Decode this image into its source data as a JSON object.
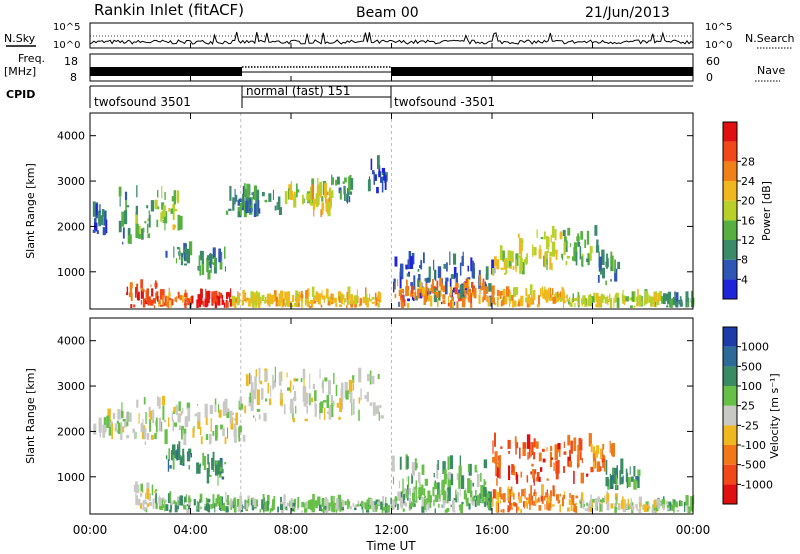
{
  "header": {
    "station": "Rankin Inlet (fitACF)",
    "beam": "Beam 00",
    "date": "21/Jun/2013"
  },
  "noise_panel": {
    "left_label": "N.Sky",
    "right_label": "N.Search",
    "ticks_left": [
      "10^5",
      "10^0"
    ],
    "ticks_right": [
      "10^5",
      "10^0"
    ]
  },
  "freq_panel": {
    "left_label_1": "Freq.",
    "left_label_2": "[MHz]",
    "ticks_left": [
      "18",
      "8"
    ],
    "ticks_right": [
      "60",
      "0"
    ],
    "right_label": "Nave"
  },
  "cpid": {
    "label": "CPID",
    "segments": [
      {
        "name": "twofsound 3501",
        "start_hour": 0,
        "end_hour": 6
      },
      {
        "name": "normal (fast) 151",
        "start_hour": 6,
        "end_hour": 12
      },
      {
        "name": "twofsound -3501",
        "start_hour": 12,
        "end_hour": 24
      }
    ]
  },
  "time_axis": {
    "label": "Time UT",
    "ticks": [
      "00:00",
      "04:00",
      "08:00",
      "12:00",
      "16:00",
      "20:00",
      "00:00"
    ]
  },
  "chart_data": [
    {
      "type": "heatmap",
      "title": "",
      "xlabel": "Time UT",
      "ylabel": "Slant Range [km]",
      "xlim_hours": [
        0,
        24
      ],
      "ylim": [
        180,
        4500
      ],
      "yticks": [
        1000,
        2000,
        3000,
        4000
      ],
      "colorbar": {
        "label": "Power [dB]",
        "ticks": [
          "4",
          "8",
          "12",
          "16",
          "20",
          "24",
          "28"
        ],
        "colors": [
          "#1f24d8",
          "#2f56b4",
          "#3b8a6a",
          "#55b040",
          "#b8d028",
          "#f0b81c",
          "#f08018",
          "#f04818",
          "#e01010"
        ]
      },
      "blobs": [
        {
          "t": [
            0.1,
            0.9
          ],
          "r": [
            1800,
            2300
          ],
          "level": 1
        },
        {
          "t": [
            1.0,
            1.6
          ],
          "r": [
            1600,
            2700
          ],
          "level": 2
        },
        {
          "t": [
            1.8,
            3.0
          ],
          "r": [
            1700,
            2700
          ],
          "level": 3
        },
        {
          "t": [
            2.8,
            3.6
          ],
          "r": [
            1900,
            2600
          ],
          "level": 4
        },
        {
          "t": [
            3.0,
            4.0
          ],
          "r": [
            1100,
            1500
          ],
          "level": 2
        },
        {
          "t": [
            4.2,
            5.4
          ],
          "r": [
            800,
            1300
          ],
          "level": 2
        },
        {
          "t": [
            5.4,
            6.2
          ],
          "r": [
            2200,
            2600
          ],
          "level": 2
        },
        {
          "t": [
            6.0,
            7.6
          ],
          "r": [
            2200,
            2700
          ],
          "level": 2
        },
        {
          "t": [
            7.6,
            9.3
          ],
          "r": [
            2400,
            2800
          ],
          "level": 4
        },
        {
          "t": [
            8.8,
            9.6
          ],
          "r": [
            2200,
            2700
          ],
          "level": 5
        },
        {
          "t": [
            9.6,
            10.4
          ],
          "r": [
            2500,
            3000
          ],
          "level": 2
        },
        {
          "t": [
            11.0,
            11.8
          ],
          "r": [
            2700,
            3300
          ],
          "level": 1
        },
        {
          "t": [
            12.0,
            16.0
          ],
          "r": [
            200,
            1200
          ],
          "level": 1
        },
        {
          "t": [
            16.0,
            17.2
          ],
          "r": [
            900,
            1300
          ],
          "level": 4
        },
        {
          "t": [
            17.0,
            18.8
          ],
          "r": [
            1000,
            1800
          ],
          "level": 4
        },
        {
          "t": [
            18.8,
            20.2
          ],
          "r": [
            1100,
            1800
          ],
          "level": 3
        },
        {
          "t": [
            20.2,
            21.0
          ],
          "r": [
            700,
            1200
          ],
          "level": 2
        }
      ],
      "ground": [
        {
          "t": [
            1.4,
            2.7
          ],
          "r": [
            200,
            700
          ],
          "level": 7
        },
        {
          "t": [
            2.7,
            4.0
          ],
          "r": [
            200,
            450
          ],
          "level": 6
        },
        {
          "t": [
            4.0,
            5.6
          ],
          "r": [
            200,
            450
          ],
          "level": 8
        },
        {
          "t": [
            5.6,
            8.0
          ],
          "r": [
            200,
            400
          ],
          "level": 5
        },
        {
          "t": [
            8.0,
            11.5
          ],
          "r": [
            200,
            450
          ],
          "level": 5
        },
        {
          "t": [
            12.0,
            15.8
          ],
          "r": [
            200,
            700
          ],
          "level": 6
        },
        {
          "t": [
            15.8,
            19.0
          ],
          "r": [
            200,
            500
          ],
          "level": 5
        },
        {
          "t": [
            19.0,
            22.8
          ],
          "r": [
            200,
            400
          ],
          "level": 4
        },
        {
          "t": [
            22.8,
            24.0
          ],
          "r": [
            200,
            400
          ],
          "level": 2
        }
      ]
    },
    {
      "type": "heatmap",
      "title": "",
      "xlabel": "Time UT",
      "ylabel": "Slant Range [km]",
      "xlim_hours": [
        0,
        24
      ],
      "ylim": [
        180,
        4500
      ],
      "yticks": [
        1000,
        2000,
        3000,
        4000
      ],
      "colorbar": {
        "label": "Velocity [m s⁻¹]",
        "ticks": [
          "1000",
          "500",
          "100",
          "25",
          "-25",
          "-100",
          "-500",
          "-1000"
        ],
        "colors": [
          "#1c3ca8",
          "#2c6a98",
          "#3a8a64",
          "#66c048",
          "#c8c8c4",
          "#f0b820",
          "#f07818",
          "#f04818",
          "#e01010"
        ]
      },
      "blobs": [
        {
          "t": [
            0.1,
            1.8
          ],
          "r": [
            1800,
            2300
          ],
          "level": 4
        },
        {
          "t": [
            1.8,
            6.2
          ],
          "r": [
            1700,
            2600
          ],
          "level": 4
        },
        {
          "t": [
            6.2,
            11.6
          ],
          "r": [
            2200,
            3200
          ],
          "level": 4
        },
        {
          "t": [
            3.0,
            4.0
          ],
          "r": [
            1100,
            1500
          ],
          "level": 2
        },
        {
          "t": [
            4.2,
            5.4
          ],
          "r": [
            800,
            1300
          ],
          "level": 2
        },
        {
          "t": [
            12.0,
            15.8
          ],
          "r": [
            400,
            1200
          ],
          "level": 3
        },
        {
          "t": [
            16.0,
            19.8
          ],
          "r": [
            800,
            1700
          ],
          "level": 7
        },
        {
          "t": [
            19.8,
            20.8
          ],
          "r": [
            1100,
            1700
          ],
          "level": 6
        },
        {
          "t": [
            20.5,
            21.8
          ],
          "r": [
            700,
            1100
          ],
          "level": 2
        }
      ],
      "ground": [
        {
          "t": [
            1.6,
            2.6
          ],
          "r": [
            200,
            700
          ],
          "level": 4
        },
        {
          "t": [
            2.6,
            5.6
          ],
          "r": [
            200,
            450
          ],
          "level": 3
        },
        {
          "t": [
            5.6,
            12.0
          ],
          "r": [
            200,
            400
          ],
          "level": 3
        },
        {
          "t": [
            12.0,
            16.0
          ],
          "r": [
            200,
            600
          ],
          "level": 3
        },
        {
          "t": [
            16.0,
            19.5
          ],
          "r": [
            200,
            600
          ],
          "level": 6
        },
        {
          "t": [
            19.5,
            21.0
          ],
          "r": [
            200,
            500
          ],
          "level": 4
        },
        {
          "t": [
            21.0,
            22.5
          ],
          "r": [
            200,
            350
          ],
          "level": 4
        },
        {
          "t": [
            22.5,
            24.0
          ],
          "r": [
            200,
            400
          ],
          "level": 3
        }
      ]
    }
  ]
}
